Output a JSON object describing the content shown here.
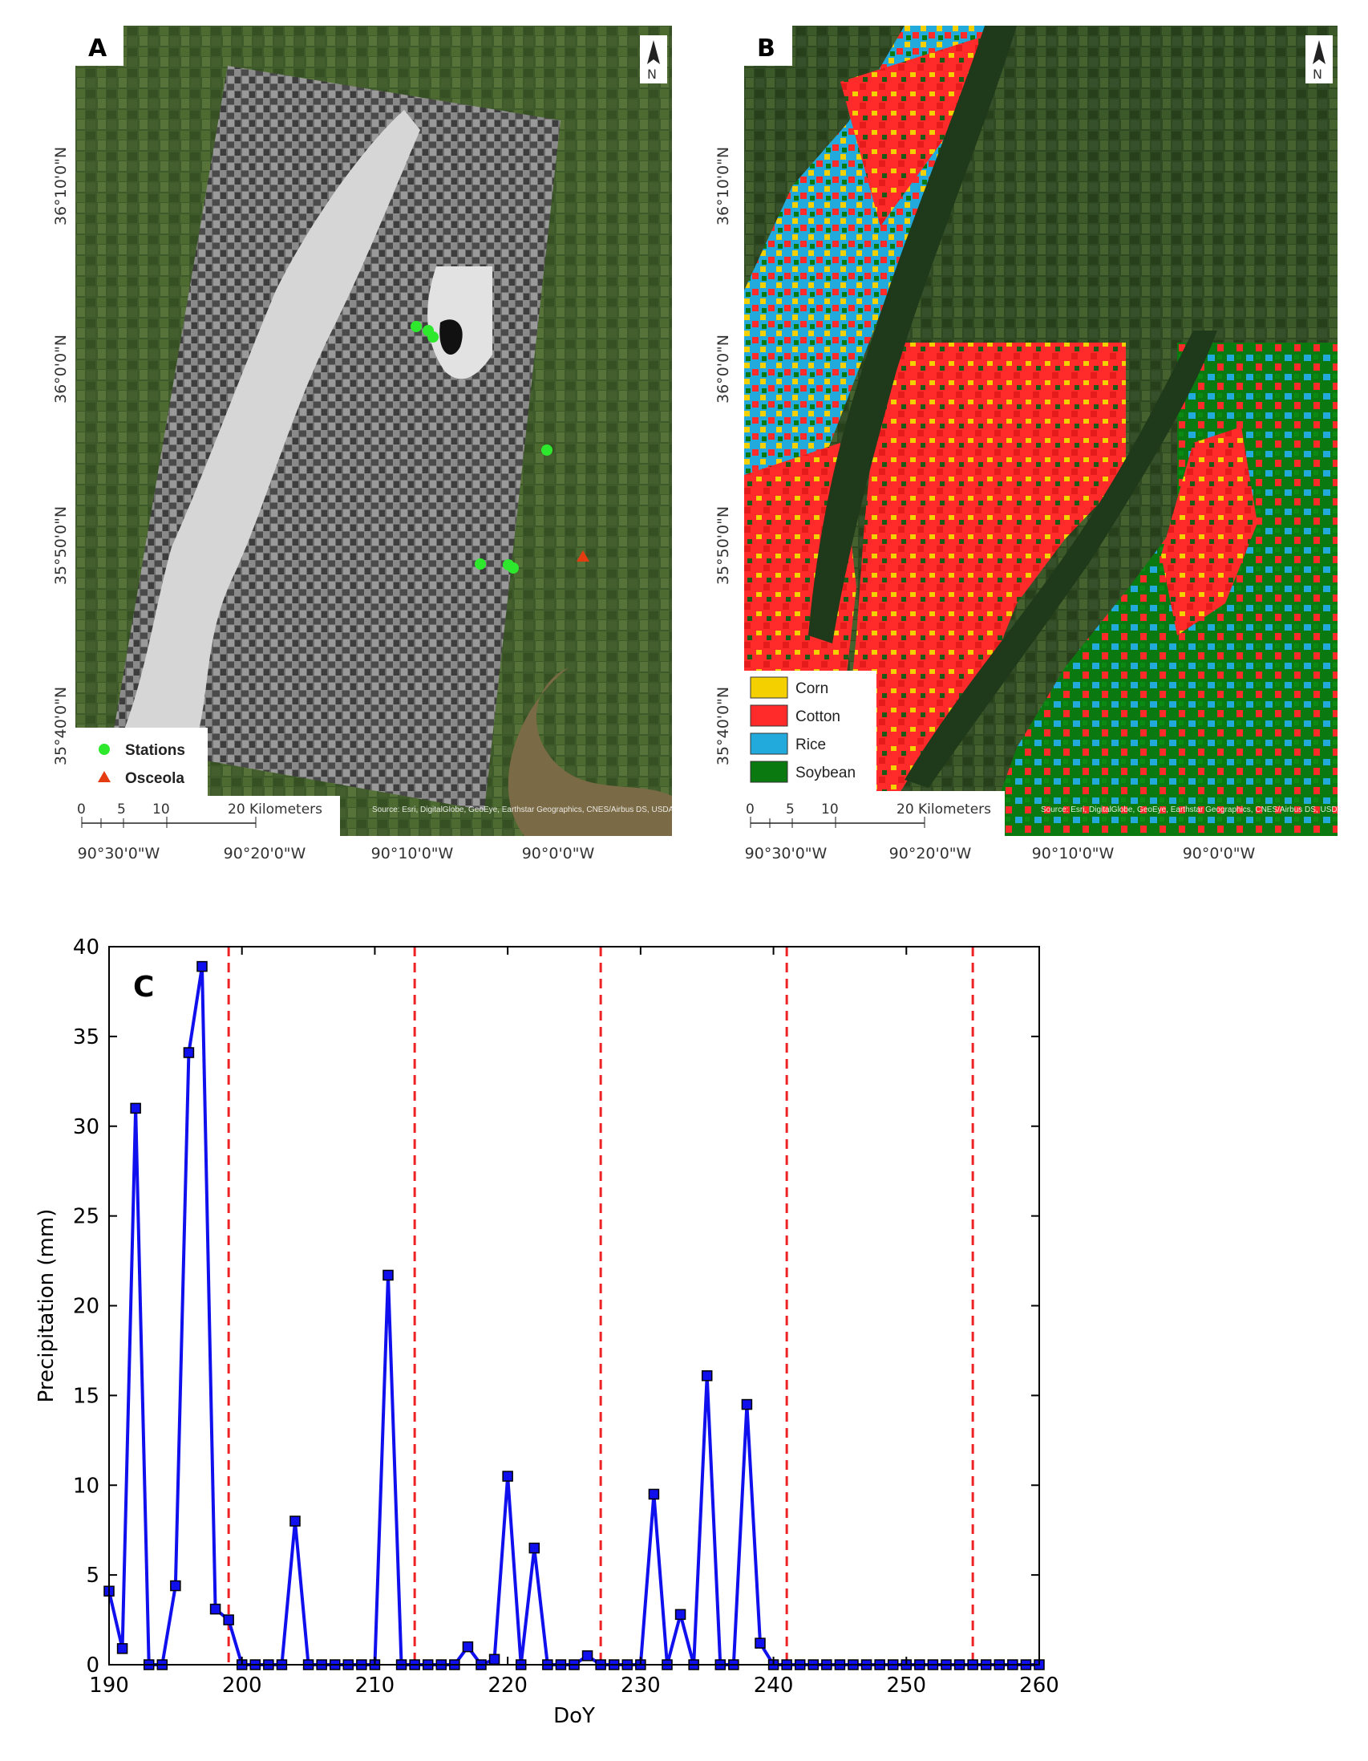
{
  "panelA": {
    "label": "A",
    "north": "N",
    "lat_labels": [
      "36°10'0\"N",
      "36°0'0\"N",
      "35°50'0\"N",
      "35°40'0\"N"
    ],
    "lon_labels": [
      "90°30'0\"W",
      "90°20'0\"W",
      "90°10'0\"W",
      "90°0'0\"W"
    ],
    "legend": [
      {
        "name": "Stations",
        "color": "#2ee82e",
        "icon": "circle"
      },
      {
        "name": "Osceola",
        "color": "#e53b10",
        "icon": "triangle"
      }
    ],
    "scalebar": {
      "ticks": [
        "0",
        "5",
        "10",
        "20 Kilometers"
      ]
    },
    "credits": "Source: Esri, DigitalGlobe, GeoEye, Earthstar Geographics, CNES/Airbus DS, USDA, USGS, AeroGRID, IGN, and the GIS User Community"
  },
  "panelB": {
    "label": "B",
    "north": "N",
    "lat_labels": [
      "36°10'0\"N",
      "36°0'0\"N",
      "35°50'0\"N",
      "35°40'0\"N"
    ],
    "lon_labels": [
      "90°30'0\"W",
      "90°20'0\"W",
      "90°10'0\"W",
      "90°0'0\"W"
    ],
    "legend": [
      {
        "name": "Corn",
        "color": "#f5d000"
      },
      {
        "name": "Cotton",
        "color": "#ff2a2a"
      },
      {
        "name": "Rice",
        "color": "#22aadd"
      },
      {
        "name": "Soybean",
        "color": "#0a7a10"
      }
    ],
    "scalebar": {
      "ticks": [
        "0",
        "5",
        "10",
        "20 Kilometers"
      ]
    },
    "credits": "Source: Esri, DigitalGlobe, GeoEye, Earthstar Geographics, CNES/Airbus DS, USDA, USGS, AeroGRID, IGN, and the GIS User Community"
  },
  "chart_data": {
    "type": "line",
    "label": "C",
    "xlabel": "DoY",
    "ylabel": "Precipitation (mm)",
    "xlim": [
      190,
      260
    ],
    "ylim": [
      0,
      40
    ],
    "xticks": [
      190,
      200,
      210,
      220,
      230,
      240,
      250,
      260
    ],
    "yticks": [
      0,
      5,
      10,
      15,
      20,
      25,
      30,
      35,
      40
    ],
    "series_color": "#1010ee",
    "vline_color": "#ee2222",
    "vlines": [
      199,
      213,
      227,
      241,
      255
    ],
    "x": [
      190,
      191,
      192,
      193,
      194,
      195,
      196,
      197,
      198,
      199,
      200,
      201,
      202,
      203,
      204,
      205,
      206,
      207,
      208,
      209,
      210,
      211,
      212,
      213,
      214,
      215,
      216,
      217,
      218,
      219,
      220,
      221,
      222,
      223,
      224,
      225,
      226,
      227,
      228,
      229,
      230,
      231,
      232,
      233,
      234,
      235,
      236,
      237,
      238,
      239,
      240,
      241,
      242,
      243,
      244,
      245,
      246,
      247,
      248,
      249,
      250,
      251,
      252,
      253,
      254,
      255,
      256,
      257,
      258,
      259,
      260
    ],
    "y": [
      4.1,
      0.9,
      31.0,
      0,
      0,
      4.4,
      34.1,
      38.9,
      3.1,
      2.5,
      0,
      0,
      0,
      0,
      8.0,
      0,
      0,
      0,
      0,
      0,
      0,
      21.7,
      0,
      0,
      0,
      0,
      0,
      1.0,
      0,
      0.3,
      10.5,
      0,
      6.5,
      0,
      0,
      0,
      0.5,
      0,
      0,
      0,
      0,
      9.5,
      0,
      2.8,
      0,
      16.1,
      0,
      0,
      14.5,
      1.2,
      0,
      0,
      0,
      0,
      0,
      0,
      0,
      0,
      0,
      0,
      0,
      0,
      0,
      0,
      0,
      0,
      0,
      0,
      0,
      0,
      0
    ]
  }
}
